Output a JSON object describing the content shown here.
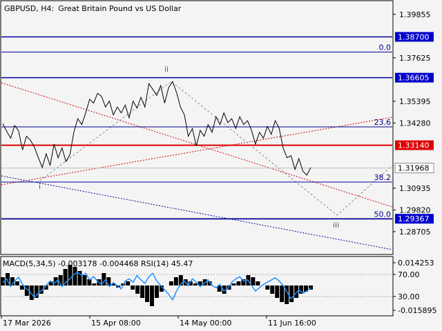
{
  "header": {
    "symbol": "GBPUSD, H4:",
    "description": "Great Britain Pound vs US Dollar"
  },
  "colors": {
    "background": "#f4f4f4",
    "price_line": "#000000",
    "blue_line": "#000099",
    "red_line": "#dd0000",
    "label_blue_bg": "#0000cc",
    "label_red_bg": "#dd0000",
    "label_current_bg": "#ffffff",
    "dotted_red": "#cc0000",
    "dotted_blue": "#000099",
    "dashed_gray": "#888888",
    "rsi_color": "#1e90ff",
    "macd_hist": "#000000"
  },
  "chart_data": [
    {
      "type": "line",
      "title": "GBPUSD, H4:  Great Britain Pound vs US Dollar",
      "price_axis": {
        "ylim": [
          1.2757,
          1.4052
        ],
        "ticks": [
          "1.39855",
          "1.37625",
          "1.35395",
          "1.34280",
          "1.30935",
          "1.29820",
          "1.28705"
        ]
      },
      "time_axis": {
        "ticks": [
          "17 Mar 2026",
          "15 Apr 08:00",
          "14 May 00:00",
          "11 Jun 16:00"
        ]
      },
      "series": [
        {
          "values": [
            1.3425,
            1.3385,
            1.335,
            1.3415,
            1.3388,
            1.329,
            1.336,
            1.334,
            1.3305,
            1.325,
            1.32,
            1.327,
            1.321,
            1.332,
            1.325,
            1.33,
            1.323,
            1.3265,
            1.338,
            1.345,
            1.342,
            1.348,
            1.355,
            1.353,
            1.358,
            1.3565,
            1.351,
            1.354,
            1.347,
            1.351,
            1.348,
            1.352,
            1.3455,
            1.354,
            1.3505,
            1.356,
            1.351,
            1.363,
            1.36,
            1.357,
            1.362,
            1.353,
            1.361,
            1.364,
            1.3585,
            1.351,
            1.347,
            1.336,
            1.34,
            1.331,
            1.339,
            1.336,
            1.342,
            1.338,
            1.346,
            1.342,
            1.348,
            1.343,
            1.345,
            1.34,
            1.346,
            1.342,
            1.344,
            1.339,
            1.332,
            1.338,
            1.335,
            1.341,
            1.337,
            1.344,
            1.34,
            1.33,
            1.325,
            1.326,
            1.319,
            1.3245,
            1.318,
            1.316,
            1.32
          ]
        }
      ],
      "horizontal_levels": [
        {
          "label": "1.38700",
          "value": 1.387,
          "style": "blue-label"
        },
        {
          "label": "1.36605",
          "value": 1.36605,
          "style": "blue-label"
        },
        {
          "label": "1.33140",
          "value": 1.3314,
          "style": "red-label"
        },
        {
          "label": "1.31968",
          "value": 1.31968,
          "style": "current-price"
        },
        {
          "label": "1.29367",
          "value": 1.29367,
          "style": "blue-label"
        }
      ],
      "fibonacci_levels": [
        {
          "label": "0.0",
          "value": 1.3792
        },
        {
          "label": "23.6",
          "value": 1.3408
        },
        {
          "label": "38.2",
          "value": 1.3125
        },
        {
          "label": "50.0",
          "value": 1.2935
        }
      ],
      "wave_labels": [
        "i",
        "ii",
        "iii"
      ]
    },
    {
      "type": "line",
      "title": "MACD(5,34,5) -0.003178 -0.004468 RSI(14) 45.47",
      "axis_ticks": [
        "0.014253",
        "70.00",
        "30.00",
        "-0.015895"
      ],
      "series": [
        {
          "name": "RSI(14)",
          "values": [
            55,
            62,
            48,
            58,
            65,
            52,
            44,
            38,
            28,
            36,
            42,
            50,
            58,
            54,
            60,
            48,
            56,
            62,
            70,
            74,
            68,
            72,
            60,
            66,
            58,
            52,
            60,
            48,
            55,
            50,
            44,
            58,
            62,
            56,
            68,
            60,
            54,
            66,
            72,
            58,
            50,
            42,
            34,
            24,
            40,
            52,
            58,
            50,
            62,
            56,
            48,
            54,
            60,
            50,
            46,
            52,
            40,
            44,
            56,
            62,
            66,
            58,
            60,
            50,
            40,
            46,
            52,
            56,
            60,
            64,
            58,
            50,
            38,
            26,
            34,
            42,
            36,
            40,
            46
          ]
        },
        {
          "name": "MACD histogram",
          "values": [
            0.004,
            0.006,
            0.004,
            0.002,
            -0.002,
            -0.005,
            -0.007,
            -0.006,
            -0.004,
            -0.002,
            0.002,
            0.004,
            0.005,
            0.008,
            0.01,
            0.009,
            0.007,
            0.005,
            0.003,
            0.001,
            0.003,
            0.006,
            0.004,
            0.001,
            -0.001,
            0.001,
            0.002,
            -0.002,
            -0.004,
            -0.006,
            -0.008,
            -0.01,
            -0.006,
            -0.003,
            0.0,
            0.002,
            0.004,
            0.005,
            0.003,
            0.002,
            0.001,
            0.002,
            0.003,
            0.002,
            0.0,
            -0.003,
            -0.004,
            -0.002,
            0.001,
            0.002,
            0.003,
            0.005,
            0.004,
            0.002,
            0.0,
            -0.002,
            -0.004,
            -0.006,
            -0.008,
            -0.009,
            -0.008,
            -0.006,
            -0.004,
            -0.003,
            -0.002
          ]
        }
      ]
    }
  ]
}
